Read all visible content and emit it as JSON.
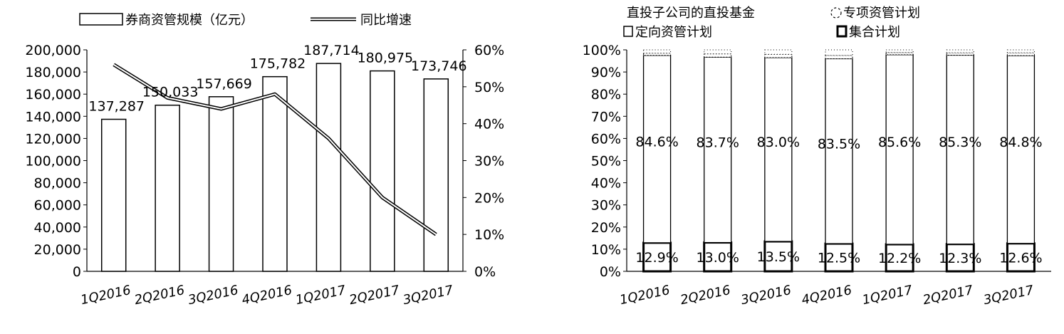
{
  "chart_data": [
    {
      "type": "bar",
      "categories": [
        "1Q2016",
        "2Q2016",
        "3Q2016",
        "4Q2016",
        "1Q2017",
        "2Q2017",
        "3Q2017"
      ],
      "series": [
        {
          "name": "券商资管规模（亿元）",
          "type": "bar",
          "axis": "left",
          "values": [
            137287,
            150033,
            157669,
            175782,
            187714,
            180975,
            173746
          ],
          "labels": [
            "137,287",
            "150,033",
            "157,669",
            "175,782",
            "187,714",
            "180,975",
            "173,746"
          ]
        },
        {
          "name": "同比增速",
          "type": "line",
          "axis": "right",
          "values": [
            0.56,
            0.47,
            0.44,
            0.48,
            0.36,
            0.2,
            0.1
          ]
        }
      ],
      "yticks_left": [
        "0",
        "20,000",
        "40,000",
        "60,000",
        "80,000",
        "100,000",
        "120,000",
        "140,000",
        "160,000",
        "180,000",
        "200,000"
      ],
      "yticks_right": [
        "0%",
        "10%",
        "20%",
        "30%",
        "40%",
        "50%",
        "60%"
      ],
      "ylim_left": [
        0,
        200000
      ],
      "ylim_right": [
        0,
        0.6
      ],
      "legend_position": "top",
      "grid": false
    },
    {
      "type": "bar",
      "stacked": true,
      "categories": [
        "1Q2016",
        "2Q2016",
        "3Q2016",
        "4Q2016",
        "1Q2017",
        "2Q2017",
        "3Q2017"
      ],
      "series": [
        {
          "name": "集合计划",
          "values": [
            12.9,
            13.0,
            13.5,
            12.5,
            12.2,
            12.3,
            12.6
          ],
          "labels": [
            "12.9%",
            "13.0%",
            "13.5%",
            "12.5%",
            "12.2%",
            "12.3%",
            "12.6%"
          ]
        },
        {
          "name": "定向资管计划",
          "values": [
            84.6,
            83.7,
            83.0,
            83.5,
            85.6,
            85.3,
            84.8
          ],
          "labels": [
            "84.6%",
            "83.7%",
            "83.0%",
            "83.5%",
            "85.6%",
            "85.3%",
            "84.8%"
          ]
        },
        {
          "name": "专项资管计划",
          "values": [
            1.0,
            1.5,
            1.5,
            1.5,
            1.0,
            1.1,
            1.3
          ]
        },
        {
          "name": "直投子公司的直投基金",
          "values": [
            1.5,
            1.8,
            2.0,
            2.5,
            1.2,
            1.3,
            1.3
          ]
        }
      ],
      "legend_order": [
        "直投子公司的直投基金",
        "专项资管计划",
        "定向资管计划",
        "集合计划"
      ],
      "yticks": [
        "0%",
        "10%",
        "20%",
        "30%",
        "40%",
        "50%",
        "60%",
        "70%",
        "80%",
        "90%",
        "100%"
      ],
      "ylim": [
        0,
        100
      ],
      "legend_position": "top",
      "grid": false
    }
  ]
}
